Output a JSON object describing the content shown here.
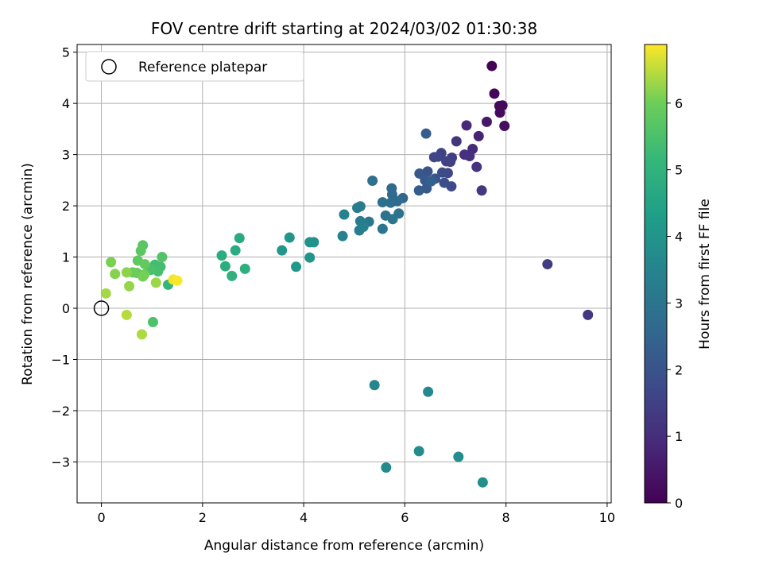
{
  "chart_data": {
    "type": "scatter",
    "title": "FOV centre drift starting at 2024/03/02 01:30:38",
    "xlabel": "Angular distance from reference (arcmin)",
    "ylabel": "Rotation from reference (arcmin)",
    "xlim": [
      -0.48,
      10.08
    ],
    "ylim": [
      -3.8,
      5.15
    ],
    "xticks": [
      0,
      2,
      4,
      6,
      8,
      10
    ],
    "yticks": [
      -3,
      -2,
      -1,
      0,
      1,
      2,
      3,
      4,
      5
    ],
    "xtick_labels": [
      "0",
      "2",
      "4",
      "6",
      "8",
      "10"
    ],
    "ytick_labels": [
      "−3",
      "−2",
      "−1",
      "0",
      "1",
      "2",
      "3",
      "4",
      "5"
    ],
    "grid": true,
    "legend": {
      "placement": "top-left",
      "entries": [
        "Reference platepar"
      ]
    },
    "reference_point": {
      "x": 0,
      "y": 0,
      "label": "Reference platepar"
    },
    "colorbar": {
      "label": "Hours from first FF file",
      "colormap": "viridis",
      "range": [
        0,
        6.88
      ],
      "ticks": [
        0,
        1,
        2,
        3,
        4,
        5,
        6
      ],
      "tick_labels": [
        "0",
        "1",
        "2",
        "3",
        "4",
        "5",
        "6"
      ]
    },
    "points": [
      {
        "x": 7.72,
        "y": 4.73,
        "c": 0.05
      },
      {
        "x": 7.77,
        "y": 4.19,
        "c": 0.1
      },
      {
        "x": 7.87,
        "y": 3.95,
        "c": 0.15
      },
      {
        "x": 7.93,
        "y": 3.96,
        "c": 0.2
      },
      {
        "x": 7.88,
        "y": 3.82,
        "c": 0.25
      },
      {
        "x": 7.97,
        "y": 3.56,
        "c": 0.3
      },
      {
        "x": 7.62,
        "y": 3.64,
        "c": 0.5
      },
      {
        "x": 7.46,
        "y": 3.36,
        "c": 0.75
      },
      {
        "x": 7.22,
        "y": 3.57,
        "c": 0.85
      },
      {
        "x": 7.34,
        "y": 3.11,
        "c": 0.95
      },
      {
        "x": 7.28,
        "y": 2.97,
        "c": 1.05
      },
      {
        "x": 7.18,
        "y": 3.0,
        "c": 1.1
      },
      {
        "x": 7.42,
        "y": 2.76,
        "c": 1.15
      },
      {
        "x": 7.02,
        "y": 3.26,
        "c": 1.2
      },
      {
        "x": 7.52,
        "y": 2.3,
        "c": 1.3
      },
      {
        "x": 8.82,
        "y": 0.86,
        "c": 1.35
      },
      {
        "x": 9.62,
        "y": -0.13,
        "c": 1.25
      },
      {
        "x": 6.93,
        "y": 2.94,
        "c": 1.4
      },
      {
        "x": 6.9,
        "y": 2.86,
        "c": 1.45
      },
      {
        "x": 6.82,
        "y": 2.87,
        "c": 1.5
      },
      {
        "x": 6.72,
        "y": 3.03,
        "c": 1.55
      },
      {
        "x": 6.66,
        "y": 2.96,
        "c": 1.6
      },
      {
        "x": 6.58,
        "y": 2.95,
        "c": 1.65
      },
      {
        "x": 6.85,
        "y": 2.64,
        "c": 1.7
      },
      {
        "x": 6.92,
        "y": 2.38,
        "c": 1.75
      },
      {
        "x": 6.74,
        "y": 2.65,
        "c": 1.8
      },
      {
        "x": 6.78,
        "y": 2.45,
        "c": 1.85
      },
      {
        "x": 6.42,
        "y": 3.41,
        "c": 2.3
      },
      {
        "x": 6.45,
        "y": 2.67,
        "c": 2.0
      },
      {
        "x": 6.6,
        "y": 2.53,
        "c": 2.05
      },
      {
        "x": 6.29,
        "y": 2.63,
        "c": 2.1
      },
      {
        "x": 6.4,
        "y": 2.5,
        "c": 2.15
      },
      {
        "x": 6.43,
        "y": 2.34,
        "c": 2.2
      },
      {
        "x": 6.28,
        "y": 2.3,
        "c": 2.25
      },
      {
        "x": 6.52,
        "y": 2.48,
        "c": 2.35
      },
      {
        "x": 5.96,
        "y": 2.15,
        "c": 2.55
      },
      {
        "x": 5.74,
        "y": 2.34,
        "c": 2.6
      },
      {
        "x": 5.75,
        "y": 2.22,
        "c": 2.65
      },
      {
        "x": 5.85,
        "y": 2.09,
        "c": 2.7
      },
      {
        "x": 5.72,
        "y": 2.06,
        "c": 2.75
      },
      {
        "x": 5.56,
        "y": 2.07,
        "c": 2.8
      },
      {
        "x": 5.36,
        "y": 2.49,
        "c": 2.85
      },
      {
        "x": 5.62,
        "y": 1.81,
        "c": 2.9
      },
      {
        "x": 5.88,
        "y": 1.85,
        "c": 2.95
      },
      {
        "x": 5.76,
        "y": 1.74,
        "c": 3.0
      },
      {
        "x": 5.56,
        "y": 1.55,
        "c": 3.05
      },
      {
        "x": 5.29,
        "y": 1.69,
        "c": 3.1
      },
      {
        "x": 5.12,
        "y": 1.99,
        "c": 3.15
      },
      {
        "x": 5.06,
        "y": 1.96,
        "c": 3.2
      },
      {
        "x": 5.12,
        "y": 1.7,
        "c": 3.25
      },
      {
        "x": 5.1,
        "y": 1.52,
        "c": 3.3
      },
      {
        "x": 5.18,
        "y": 1.59,
        "c": 3.35
      },
      {
        "x": 4.8,
        "y": 1.83,
        "c": 3.4
      },
      {
        "x": 4.77,
        "y": 1.41,
        "c": 3.45
      },
      {
        "x": 5.4,
        "y": -1.5,
        "c": 3.6
      },
      {
        "x": 6.46,
        "y": -1.63,
        "c": 3.65
      },
      {
        "x": 5.63,
        "y": -3.11,
        "c": 3.7
      },
      {
        "x": 6.28,
        "y": -2.79,
        "c": 3.75
      },
      {
        "x": 7.06,
        "y": -2.9,
        "c": 3.8
      },
      {
        "x": 7.54,
        "y": -3.4,
        "c": 3.85
      },
      {
        "x": 4.2,
        "y": 1.29,
        "c": 3.9
      },
      {
        "x": 4.12,
        "y": 1.29,
        "c": 3.95
      },
      {
        "x": 4.12,
        "y": 0.99,
        "c": 4.0
      },
      {
        "x": 3.72,
        "y": 1.38,
        "c": 4.05
      },
      {
        "x": 3.57,
        "y": 1.13,
        "c": 4.1
      },
      {
        "x": 3.85,
        "y": 0.81,
        "c": 4.15
      },
      {
        "x": 2.73,
        "y": 1.37,
        "c": 4.7
      },
      {
        "x": 2.65,
        "y": 1.13,
        "c": 4.75
      },
      {
        "x": 2.38,
        "y": 1.03,
        "c": 4.8
      },
      {
        "x": 2.45,
        "y": 0.82,
        "c": 4.85
      },
      {
        "x": 2.84,
        "y": 0.77,
        "c": 4.9
      },
      {
        "x": 2.58,
        "y": 0.63,
        "c": 4.95
      },
      {
        "x": 1.32,
        "y": 0.46,
        "c": 5.05
      },
      {
        "x": 1.1,
        "y": 0.78,
        "c": 5.3
      },
      {
        "x": 1.06,
        "y": 0.85,
        "c": 5.35
      },
      {
        "x": 1.17,
        "y": 0.81,
        "c": 5.4
      },
      {
        "x": 1.12,
        "y": 0.72,
        "c": 5.45
      },
      {
        "x": 0.98,
        "y": 0.75,
        "c": 5.5
      },
      {
        "x": 1.02,
        "y": -0.27,
        "c": 5.55
      },
      {
        "x": 1.2,
        "y": 1.0,
        "c": 5.6
      },
      {
        "x": 0.82,
        "y": 1.23,
        "c": 5.7
      },
      {
        "x": 0.78,
        "y": 1.12,
        "c": 5.75
      },
      {
        "x": 0.72,
        "y": 0.93,
        "c": 5.8
      },
      {
        "x": 0.86,
        "y": 0.86,
        "c": 5.85
      },
      {
        "x": 0.7,
        "y": 0.69,
        "c": 5.9
      },
      {
        "x": 0.62,
        "y": 0.7,
        "c": 5.95
      },
      {
        "x": 0.85,
        "y": 0.66,
        "c": 6.0
      },
      {
        "x": 0.82,
        "y": 0.62,
        "c": 6.05
      },
      {
        "x": 0.19,
        "y": 0.9,
        "c": 6.1
      },
      {
        "x": 0.27,
        "y": 0.67,
        "c": 6.15
      },
      {
        "x": 0.5,
        "y": 0.7,
        "c": 6.2
      },
      {
        "x": 0.55,
        "y": 0.43,
        "c": 6.25
      },
      {
        "x": 1.08,
        "y": 0.5,
        "c": 6.3
      },
      {
        "x": 0.09,
        "y": 0.29,
        "c": 6.35
      },
      {
        "x": 0.8,
        "y": -0.51,
        "c": 6.4
      },
      {
        "x": 0.5,
        "y": -0.13,
        "c": 6.45
      },
      {
        "x": 1.42,
        "y": 0.56,
        "c": 6.8
      },
      {
        "x": 1.5,
        "y": 0.54,
        "c": 6.85
      }
    ]
  }
}
